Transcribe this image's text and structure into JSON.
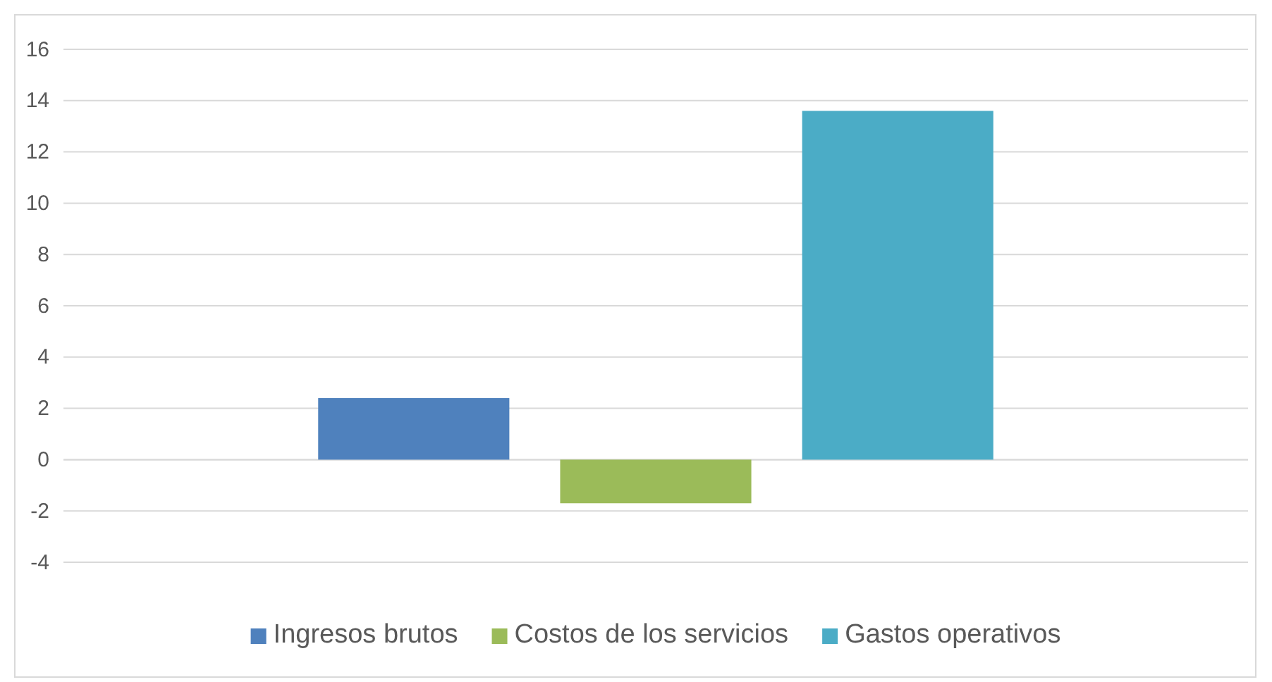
{
  "chart_data": {
    "type": "bar",
    "categories": [
      null
    ],
    "series": [
      {
        "name": "Ingresos brutos",
        "color": "#4f81bd",
        "values": [
          2.4
        ]
      },
      {
        "name": "Costos de los servicios",
        "color": "#9bbb59",
        "values": [
          -1.7
        ]
      },
      {
        "name": "Gastos operativos",
        "color": "#4bacc6",
        "values": [
          13.6
        ]
      }
    ],
    "ylim": [
      -4,
      16
    ],
    "yticks": [
      -4,
      -2,
      0,
      2,
      4,
      6,
      8,
      10,
      12,
      14,
      16
    ],
    "grid": "y",
    "legend": "bottom"
  }
}
